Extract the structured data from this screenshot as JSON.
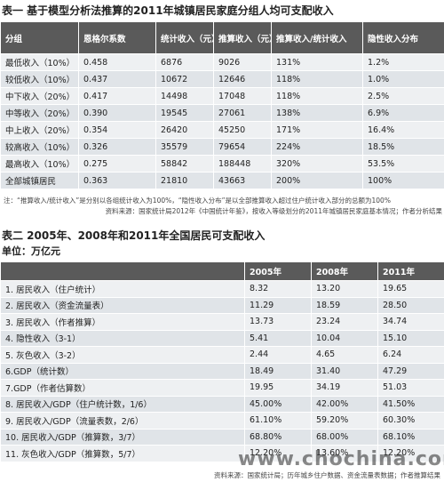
{
  "table1": {
    "title": "表一 基于模型分析法推算的2011年城镇居民家庭分组人均可支配收入",
    "header": [
      "分组",
      "恩格尔系数",
      "统计收入（元）",
      "推算收入（元）",
      "推算收入/统计收入",
      "隐性收入分布"
    ],
    "rows": [
      [
        "最低收入（10%）",
        "0.458",
        "6876",
        "9026",
        "131%",
        "1.2%"
      ],
      [
        "较低收入（10%）",
        "0.437",
        "10672",
        "12646",
        "118%",
        "1.0%"
      ],
      [
        "中下收入（20%）",
        "0.417",
        "14498",
        "17048",
        "118%",
        "2.5%"
      ],
      [
        "中等收入（20%）",
        "0.390",
        "19545",
        "27061",
        "138%",
        "6.9%"
      ],
      [
        "中上收入（20%）",
        "0.354",
        "26420",
        "45250",
        "171%",
        "16.4%"
      ],
      [
        "较高收入（10%）",
        "0.326",
        "35579",
        "79654",
        "224%",
        "18.5%"
      ],
      [
        "最高收入（10%）",
        "0.275",
        "58842",
        "188448",
        "320%",
        "53.5%"
      ],
      [
        "全部城镇居民",
        "0.363",
        "21810",
        "43663",
        "200%",
        "100%"
      ]
    ],
    "note": "注：“推算收入/统计收入”是分别以各组统计收入为100%，“隐性收入分布”是以全部推算收入超过住户统计收入部分的总额为100%",
    "source": "资料来源：国家统计局2012年《中国统计年鉴》，按收入等级划分的2011年城镇居民家庭基本情况；作者分析结果"
  },
  "table2": {
    "title": "表二 2005年、2008年和2011年全国居民可支配收入",
    "unit": "单位：万亿元",
    "header": [
      "2005年",
      "2008年",
      "2011年"
    ],
    "rows": [
      [
        "1. 居民收入（住户统计）",
        "8.32",
        "13.20",
        "19.65"
      ],
      [
        "2. 居民收入（资金流量表）",
        "11.29",
        "18.59",
        "28.50"
      ],
      [
        "3. 居民收入（作者推算）",
        "13.73",
        "23.24",
        "34.74"
      ],
      [
        "4. 隐性收入（3-1）",
        "5.41",
        "10.04",
        "15.10"
      ],
      [
        "5. 灰色收入（3-2）",
        "2.44",
        "4.65",
        "6.24"
      ],
      [
        "6.GDP（统计数）",
        "18.49",
        "31.40",
        "47.29"
      ],
      [
        "7.GDP（作者估算数）",
        "19.95",
        "34.19",
        "51.03"
      ],
      [
        "8. 居民收入/GDP（住户统计数，1/6）",
        "45.00%",
        "42.00%",
        "41.50%"
      ],
      [
        "9. 居民收入/GDP（流量表数，2/6）",
        "61.10%",
        "59.20%",
        "60.30%"
      ],
      [
        "10. 居民收入/GDP（推算数，3/7）",
        "68.80%",
        "68.00%",
        "68.10%"
      ],
      [
        "11. 灰色收入/GDP（推算数，5/7）",
        "12.20%",
        "13.60%",
        "12.20%"
      ]
    ],
    "source": "资料来源：国家统计局；历年城乡住户数据、资金流量表数据；作者推算结果"
  },
  "watermark": "www.chochina.com"
}
